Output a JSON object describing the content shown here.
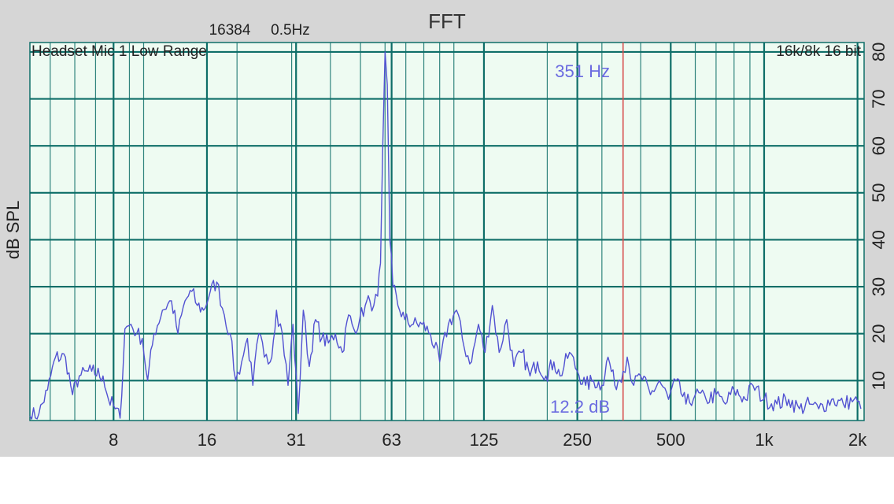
{
  "chart_data": {
    "type": "line",
    "title": "FFT",
    "fft_size": "16384",
    "resolution": "0.5Hz",
    "source_label": "Headset Mic 1 Low Range",
    "format_label": "16k/8k 16 bit",
    "ylabel": "dB SPL",
    "xscale": "log",
    "xlim": [
      4.3,
      2100
    ],
    "ylim": [
      1.5,
      82
    ],
    "x_ticks": [
      {
        "value": 8,
        "label": "8"
      },
      {
        "value": 16,
        "label": "16"
      },
      {
        "value": 31,
        "label": "31"
      },
      {
        "value": 63,
        "label": "63"
      },
      {
        "value": 125,
        "label": "125"
      },
      {
        "value": 250,
        "label": "250"
      },
      {
        "value": 500,
        "label": "500"
      },
      {
        "value": 1000,
        "label": "1k"
      },
      {
        "value": 2000,
        "label": "2k"
      }
    ],
    "y_ticks": [
      {
        "value": 10,
        "label": "10"
      },
      {
        "value": 20,
        "label": "20"
      },
      {
        "value": 30,
        "label": "30"
      },
      {
        "value": 40,
        "label": "40"
      },
      {
        "value": 50,
        "label": "50"
      },
      {
        "value": 60,
        "label": "60"
      },
      {
        "value": 70,
        "label": "70"
      },
      {
        "value": 80,
        "label": "80"
      }
    ],
    "grid": true,
    "cursor": {
      "freq": 351,
      "freq_label": "351 Hz",
      "level_label": "12.2 dB"
    },
    "colors": {
      "background": "#eefbf2",
      "grid": "#0e6e68",
      "line": "#5252d2",
      "cursor": "#d85050",
      "readout": "#6a6ae0",
      "frame": "#d6d6d6"
    },
    "series": [
      {
        "values": [
          [
            4.3,
            2.5
          ],
          [
            4.6,
            3
          ],
          [
            4.9,
            8
          ],
          [
            5.2,
            15
          ],
          [
            5.6,
            15
          ],
          [
            5.9,
            7
          ],
          [
            6.2,
            11
          ],
          [
            6.8,
            12
          ],
          [
            7.4,
            11
          ],
          [
            7.7,
            6
          ],
          [
            8.1,
            4
          ],
          [
            8.4,
            2
          ],
          [
            8.7,
            21
          ],
          [
            9.1,
            22
          ],
          [
            9.5,
            20
          ],
          [
            9.9,
            19
          ],
          [
            10.3,
            10
          ],
          [
            10.8,
            20
          ],
          [
            11.5,
            25
          ],
          [
            12.3,
            27
          ],
          [
            12.9,
            20
          ],
          [
            13.6,
            27
          ],
          [
            14.3,
            29
          ],
          [
            14.9,
            26
          ],
          [
            15.6,
            25
          ],
          [
            16.4,
            29
          ],
          [
            17.2,
            31
          ],
          [
            18.2,
            24
          ],
          [
            19,
            20
          ],
          [
            19.8,
            10
          ],
          [
            20.7,
            14
          ],
          [
            21.6,
            19
          ],
          [
            22.5,
            9
          ],
          [
            23.5,
            20
          ],
          [
            24.5,
            15
          ],
          [
            25.6,
            14
          ],
          [
            26.8,
            25
          ],
          [
            28,
            20
          ],
          [
            29.2,
            9
          ],
          [
            30.3,
            22
          ],
          [
            31.5,
            3
          ],
          [
            32.7,
            25
          ],
          [
            34.2,
            13
          ],
          [
            35.8,
            23
          ],
          [
            37.5,
            19
          ],
          [
            39.4,
            18
          ],
          [
            41.5,
            20
          ],
          [
            43.7,
            16
          ],
          [
            45.8,
            24
          ],
          [
            47.6,
            21
          ],
          [
            49.7,
            23
          ],
          [
            51.8,
            26
          ],
          [
            53.6,
            27
          ],
          [
            55.2,
            26
          ],
          [
            56.8,
            28
          ],
          [
            58,
            35
          ],
          [
            59,
            60
          ],
          [
            60,
            80
          ],
          [
            61,
            73
          ],
          [
            62.2,
            40
          ],
          [
            63.6,
            30
          ],
          [
            66,
            26
          ],
          [
            69.5,
            23
          ],
          [
            74,
            22
          ],
          [
            79,
            22
          ],
          [
            84,
            20
          ],
          [
            90,
            14
          ],
          [
            96,
            22
          ],
          [
            102,
            25
          ],
          [
            108,
            17
          ],
          [
            114,
            14
          ],
          [
            120,
            22
          ],
          [
            126,
            16
          ],
          [
            133,
            26
          ],
          [
            140,
            16
          ],
          [
            148,
            23
          ],
          [
            156,
            13
          ],
          [
            166,
            16
          ],
          [
            176,
            11
          ],
          [
            186,
            14
          ],
          [
            198,
            11
          ],
          [
            210,
            14
          ],
          [
            220,
            11
          ],
          [
            236,
            16
          ],
          [
            250,
            12
          ],
          [
            266,
            9
          ],
          [
            282,
            10
          ],
          [
            300,
            9
          ],
          [
            314,
            15
          ],
          [
            330,
            9
          ],
          [
            351,
            12
          ],
          [
            362,
            15
          ],
          [
            380,
            9
          ],
          [
            400,
            11
          ],
          [
            430,
            7
          ],
          [
            460,
            10
          ],
          [
            492,
            6
          ],
          [
            520,
            10
          ],
          [
            560,
            5
          ],
          [
            600,
            7
          ],
          [
            650,
            6
          ],
          [
            700,
            7
          ],
          [
            750,
            5
          ],
          [
            800,
            8
          ],
          [
            870,
            6
          ],
          [
            920,
            9
          ],
          [
            1000,
            6
          ],
          [
            1100,
            5
          ],
          [
            1200,
            6
          ],
          [
            1300,
            4
          ],
          [
            1400,
            5
          ],
          [
            1500,
            4
          ],
          [
            1650,
            6
          ],
          [
            1800,
            5
          ],
          [
            1950,
            6
          ],
          [
            2050,
            4
          ]
        ]
      }
    ]
  }
}
